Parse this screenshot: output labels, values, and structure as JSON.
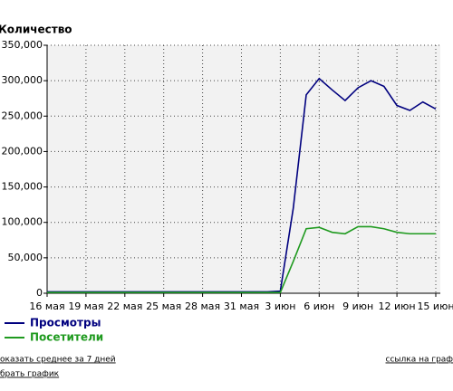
{
  "chart_data": {
    "type": "line",
    "title": "Количество",
    "categories": [
      "16 мая",
      null,
      null,
      "19 мая",
      null,
      null,
      "22 мая",
      null,
      null,
      "25 мая",
      null,
      null,
      "28 мая",
      null,
      null,
      "31 мая",
      null,
      null,
      "3 июн",
      null,
      null,
      "6 июн",
      null,
      null,
      "9 июн",
      null,
      null,
      "12 июн",
      null,
      null,
      "15 июн"
    ],
    "series": [
      {
        "name": "Просмотры",
        "color": "#00007f",
        "values": [
          2000,
          2000,
          2000,
          2000,
          2000,
          2000,
          2000,
          2000,
          2000,
          2000,
          2000,
          2000,
          2000,
          2000,
          2000,
          2000,
          2000,
          2000,
          3000,
          120000,
          280000,
          303000,
          287000,
          272000,
          290000,
          300000,
          292000,
          265000,
          258000,
          270000,
          260000
        ]
      },
      {
        "name": "Посетители",
        "color": "#1f9a1f",
        "values": [
          1000,
          1000,
          1000,
          1000,
          1000,
          1000,
          1000,
          1000,
          1000,
          1000,
          1000,
          1000,
          1000,
          1000,
          1000,
          1000,
          1000,
          1000,
          1000,
          45000,
          91000,
          93000,
          86000,
          84000,
          94000,
          94000,
          91000,
          86000,
          84000,
          84000,
          84000
        ]
      }
    ],
    "ylim": [
      0,
      350000
    ],
    "yticks": [
      0,
      {
        "value": 50000,
        "label": "50,000"
      },
      {
        "value": 100000,
        "label": "100,000"
      },
      {
        "value": 150000,
        "label": "150,000"
      },
      {
        "value": 200000,
        "label": "200,000"
      },
      {
        "value": 250000,
        "label": "250,000"
      },
      {
        "value": 300000,
        "label": "300,000"
      },
      {
        "value": 350000,
        "label": "350,000"
      }
    ],
    "grid": true
  },
  "links": [
    "оказать среднее за 7 дней",
    "ссылка на граф",
    "брать график"
  ]
}
